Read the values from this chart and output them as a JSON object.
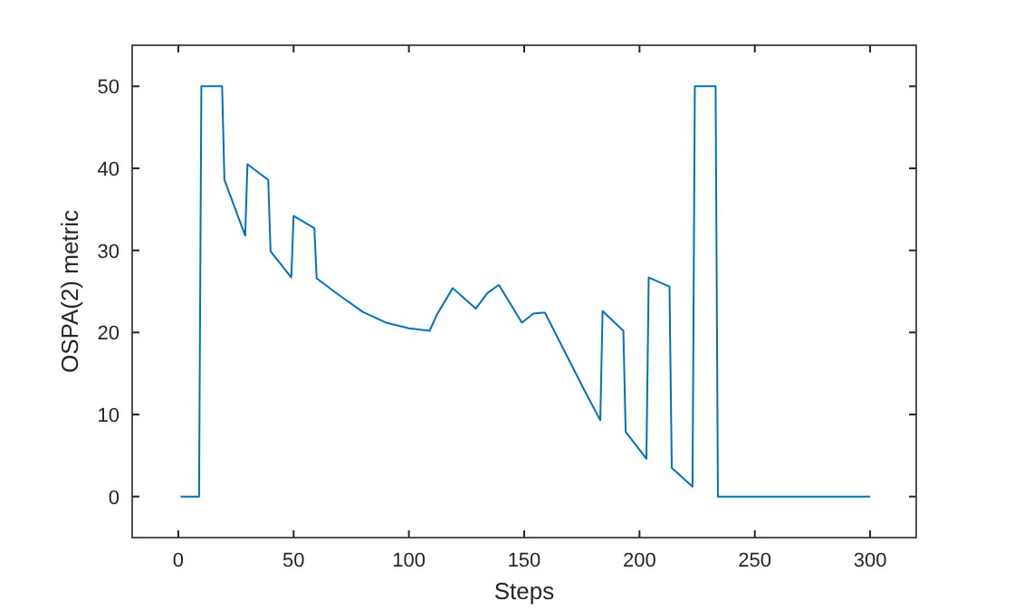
{
  "chart_data": {
    "type": "line",
    "xlabel": "Steps",
    "ylabel": "OSPA(2) metric",
    "x": [
      1,
      9,
      10,
      19,
      20,
      29,
      30,
      39,
      40,
      49,
      50,
      59,
      60,
      69,
      80,
      90,
      100,
      109,
      112,
      119,
      129,
      134,
      139,
      149,
      154,
      158,
      159,
      176,
      183,
      184,
      193,
      194,
      203,
      204,
      213,
      214,
      223,
      224,
      233,
      234,
      300
    ],
    "series": [
      {
        "color": "#0072bd",
        "values": [
          0,
          0,
          50,
          50,
          38.6,
          31.8,
          40.5,
          38.6,
          29.9,
          26.7,
          34.2,
          32.7,
          26.6,
          24.7,
          22.5,
          21.2,
          20.5,
          20.2,
          22.1,
          25.4,
          22.9,
          24.8,
          25.8,
          21.2,
          22.3,
          22.4,
          22.4,
          13.0,
          9.3,
          22.6,
          20.2,
          7.9,
          4.6,
          26.7,
          25.6,
          3.5,
          1.2,
          50,
          50,
          0,
          0
        ]
      }
    ],
    "xlim": [
      -20,
      320
    ],
    "ylim": [
      -5,
      55
    ],
    "xticks": [
      0,
      50,
      100,
      150,
      200,
      250,
      300
    ],
    "yticks": [
      0,
      10,
      20,
      30,
      40,
      50
    ],
    "grid": false,
    "line_style": "solid",
    "marker": "none"
  }
}
